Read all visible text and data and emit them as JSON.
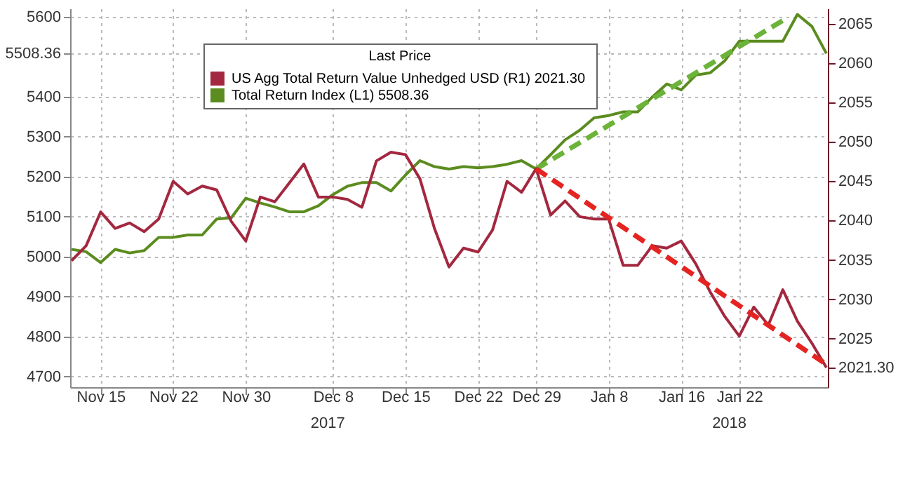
{
  "chart_data": {
    "type": "line",
    "categories": [
      null,
      null,
      "Nov 15",
      null,
      null,
      null,
      null,
      "Nov 22",
      null,
      null,
      null,
      null,
      "Nov 30",
      null,
      null,
      null,
      null,
      null,
      "Dec 8",
      null,
      null,
      null,
      null,
      "Dec 15",
      null,
      null,
      null,
      null,
      "Dec 22",
      null,
      null,
      null,
      "Dec 29",
      null,
      null,
      null,
      null,
      "Jan 8",
      null,
      null,
      null,
      null,
      "Jan 16",
      null,
      null,
      null,
      "Jan 22",
      null,
      null,
      null,
      null,
      null,
      null
    ],
    "legend_title": "Last Price",
    "series": [
      {
        "name": "US Agg Total Return Value Unhedged USD  (R1) 2021.30",
        "color": "#a3283f",
        "axis": "y2",
        "values": [
          2034.9,
          2036.8,
          2041.1,
          2039.0,
          2039.7,
          2038.6,
          2040.2,
          2045.0,
          2043.4,
          2044.4,
          2043.9,
          2039.9,
          2037.4,
          2043.0,
          2042.4,
          2044.8,
          2047.2,
          2043.0,
          2043.0,
          2042.7,
          2041.7,
          2047.6,
          2048.7,
          2048.4,
          2045.3,
          2039.0,
          2034.1,
          2036.5,
          2036.0,
          2038.8,
          2045.0,
          2043.6,
          2046.6,
          2040.7,
          2042.5,
          2040.5,
          2040.2,
          2040.2,
          2034.3,
          2034.3,
          2036.8,
          2036.5,
          2037.4,
          2034.5,
          2030.9,
          2027.8,
          2025.3,
          2029.0,
          2026.7,
          2031.2,
          2027.2,
          2024.4,
          2021.3
        ]
      },
      {
        "name": "Total Return Index  (L1) 5508.36",
        "color": "#5b8c1f",
        "values": [
          5018,
          5012,
          4985,
          5018,
          5009,
          5015,
          5048,
          5048,
          5054,
          5054,
          5094,
          5097,
          5146,
          5134,
          5124,
          5112,
          5112,
          5127,
          5155,
          5176,
          5185,
          5185,
          5164,
          5204,
          5240,
          5225,
          5219,
          5225,
          5222,
          5225,
          5231,
          5240,
          5219,
          5255,
          5292,
          5316,
          5347,
          5353,
          5362,
          5362,
          5399,
          5432,
          5417,
          5454,
          5460,
          5490,
          5539,
          5539,
          5539,
          5539,
          5606,
          5576,
          5508.36
        ]
      },
      {
        "color": "#e52421",
        "axis": "y2",
        "line_style": "dashed",
        "values": [
          null,
          null,
          null,
          null,
          null,
          null,
          null,
          null,
          null,
          null,
          null,
          null,
          null,
          null,
          null,
          null,
          null,
          null,
          null,
          null,
          null,
          null,
          null,
          null,
          null,
          null,
          null,
          null,
          null,
          null,
          null,
          null,
          2046.6,
          null,
          null,
          null,
          null,
          null,
          null,
          null,
          null,
          null,
          null,
          null,
          null,
          null,
          null,
          null,
          null,
          null,
          null,
          null,
          2021.7
        ]
      },
      {
        "color": "#6cb33a",
        "line_style": "dashed",
        "values": [
          null,
          null,
          null,
          null,
          null,
          null,
          null,
          null,
          null,
          null,
          null,
          null,
          null,
          null,
          null,
          null,
          null,
          null,
          null,
          null,
          null,
          null,
          null,
          null,
          null,
          null,
          null,
          null,
          null,
          null,
          null,
          null,
          5219,
          null,
          null,
          null,
          null,
          null,
          null,
          null,
          null,
          null,
          null,
          null,
          null,
          null,
          null,
          null,
          null,
          5591,
          null,
          null,
          null
        ]
      }
    ],
    "ylim": [
      4673,
      5621
    ],
    "yticks": [
      4700,
      4800,
      4900,
      5000,
      5100,
      5200,
      5300,
      5400,
      {
        "value": 5508.36,
        "label": "5508.36"
      },
      5600
    ],
    "y2lim": [
      2018.8,
      2067
    ],
    "y2ticks": [
      {
        "value": 2021.3,
        "label": "2021.30"
      },
      2025,
      2030,
      2035,
      2040,
      2045,
      2050,
      2055,
      2060,
      2065
    ],
    "annotations": [
      "2017",
      "2018"
    ],
    "grid": true,
    "legend": "top",
    "line_style": "solid"
  }
}
